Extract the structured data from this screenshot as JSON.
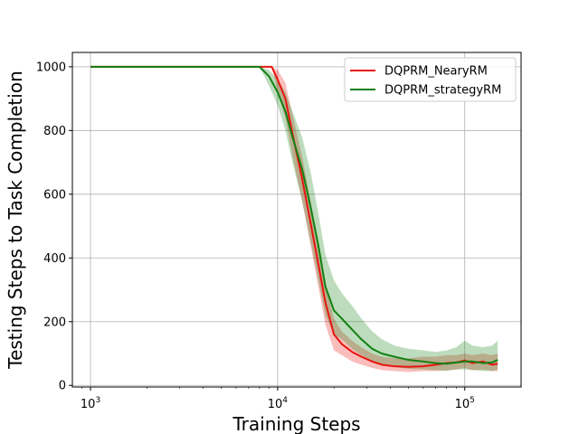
{
  "chart_data": {
    "type": "line",
    "title": "",
    "xlabel": "Training Steps",
    "ylabel": "Testing Steps to Task Completion",
    "xscale": "log",
    "xlim": [
      800,
      200000
    ],
    "ylim": [
      -5,
      1045
    ],
    "x_ticks": [
      1000,
      10000,
      100000
    ],
    "x_tick_labels": [
      {
        "base": "10",
        "exp": "3"
      },
      {
        "base": "10",
        "exp": "4"
      },
      {
        "base": "10",
        "exp": "5"
      }
    ],
    "y_ticks": [
      0,
      200,
      400,
      600,
      800,
      1000
    ],
    "y_tick_labels": [
      "0",
      "200",
      "400",
      "600",
      "800",
      "1000"
    ],
    "grid": true,
    "legend_position": "upper right",
    "series": [
      {
        "name": "DQPRM_NearyRM",
        "color": "#e8140e",
        "x": [
          1000,
          7000,
          8500,
          9300,
          10000,
          11000,
          12000,
          13500,
          15000,
          16500,
          18000,
          20000,
          22000,
          25000,
          28000,
          32000,
          36000,
          42000,
          50000,
          60000,
          70000,
          80000,
          90000,
          100000,
          110000,
          125000,
          140000,
          150000
        ],
        "y": [
          1000,
          1000,
          1000,
          1000,
          960,
          900,
          790,
          650,
          510,
          380,
          260,
          160,
          130,
          105,
          90,
          75,
          65,
          60,
          58,
          60,
          65,
          70,
          72,
          78,
          70,
          75,
          65,
          68
        ],
        "upper": [
          1000,
          1000,
          1000,
          1000,
          990,
          950,
          850,
          720,
          580,
          440,
          320,
          210,
          170,
          140,
          120,
          100,
          90,
          85,
          85,
          90,
          90,
          95,
          95,
          100,
          95,
          100,
          95,
          100
        ],
        "lower": [
          1000,
          1000,
          1000,
          1000,
          920,
          840,
          720,
          580,
          440,
          310,
          190,
          110,
          95,
          75,
          65,
          55,
          48,
          45,
          42,
          45,
          45,
          48,
          50,
          55,
          48,
          50,
          45,
          45
        ]
      },
      {
        "name": "DQPRM_strategyRM",
        "color": "#128012",
        "x": [
          1000,
          7000,
          8000,
          9000,
          10000,
          11000,
          12000,
          13500,
          15000,
          16500,
          18000,
          20000,
          22000,
          25000,
          28000,
          32000,
          36000,
          42000,
          50000,
          60000,
          70000,
          80000,
          90000,
          100000,
          110000,
          125000,
          140000,
          150000
        ],
        "y": [
          1000,
          1000,
          1000,
          970,
          920,
          860,
          780,
          680,
          560,
          440,
          310,
          235,
          210,
          175,
          145,
          115,
          100,
          90,
          80,
          75,
          70,
          68,
          72,
          75,
          75,
          70,
          72,
          80
        ],
        "upper": [
          1000,
          1000,
          1000,
          990,
          960,
          920,
          860,
          780,
          670,
          540,
          410,
          330,
          290,
          250,
          210,
          170,
          145,
          125,
          115,
          110,
          105,
          110,
          120,
          140,
          125,
          120,
          125,
          140
        ],
        "lower": [
          1000,
          1000,
          1000,
          940,
          880,
          800,
          700,
          580,
          450,
          330,
          220,
          160,
          145,
          115,
          95,
          75,
          65,
          58,
          52,
          50,
          48,
          45,
          50,
          50,
          48,
          45,
          45,
          50
        ]
      }
    ]
  }
}
